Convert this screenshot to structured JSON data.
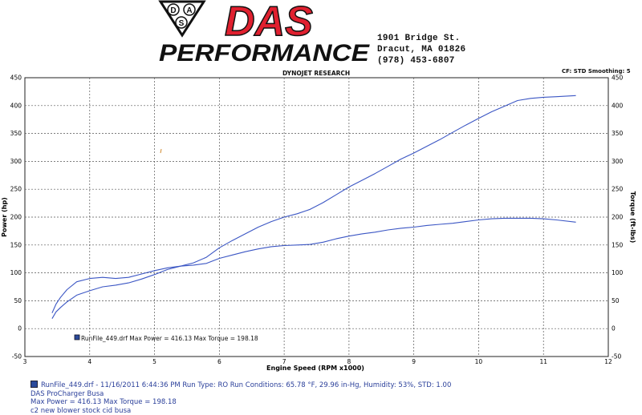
{
  "header": {
    "logo_badge": {
      "letters": [
        "D",
        "A",
        "S"
      ]
    },
    "logo_das": "DAS",
    "logo_performance": "PERFORMANCE",
    "address_lines": [
      "1901 Bridge St.",
      "Dracut, MA  01826",
      "(978) 453-6807"
    ],
    "chart_header": "DYNOJET RESEARCH",
    "cf_smoothing": "CF: STD   Smoothing: 5"
  },
  "colors": {
    "logo_red": "#e0202f",
    "logo_black": "#111111",
    "curve_blue": "#3b56c4",
    "grid": "#555555",
    "text_blue": "#2a3f9a"
  },
  "legend": {
    "text": "RunFile_449.drf Max Power = 416.13     Max Torque = 198.18"
  },
  "footer": {
    "lines": [
      "RunFile_449.drf - 11/16/2011 6:44:36 PM  Run Type: RO  Run Conditions: 65.78 °F, 29.96 in-Hg,  Humidity:  53%, STD: 1.00",
      "DAS ProCharger Busa",
      "Max Power = 416.13  Max Torque = 198.18",
      "c2 new  blower  stock cid busa"
    ]
  },
  "chart_data": {
    "type": "line",
    "title": "DYNOJET RESEARCH",
    "xlabel": "Engine Speed (RPM x1000)",
    "ylabel_left": "Power (hp)",
    "ylabel_right": "Torque (ft-lbs)",
    "xlim": [
      3,
      12
    ],
    "ylim": [
      -50,
      450
    ],
    "x_ticks": [
      "3",
      "4",
      "5",
      "6",
      "7",
      "8",
      "9",
      "10",
      "11",
      "12"
    ],
    "y_ticks": [
      "-50",
      "0",
      "50",
      "100",
      "150",
      "200",
      "250",
      "300",
      "350",
      "400",
      "450"
    ],
    "grid": true,
    "series": [
      {
        "name": "Power",
        "x": [
          3.42,
          3.48,
          3.55,
          3.65,
          3.8,
          4.0,
          4.2,
          4.4,
          4.6,
          4.8,
          5.0,
          5.2,
          5.4,
          5.6,
          5.8,
          6.0,
          6.2,
          6.4,
          6.6,
          6.8,
          7.0,
          7.2,
          7.4,
          7.6,
          7.8,
          8.0,
          8.2,
          8.4,
          8.6,
          8.8,
          9.0,
          9.2,
          9.4,
          9.6,
          9.8,
          10.0,
          10.2,
          10.4,
          10.6,
          10.8,
          11.0,
          11.2,
          11.5
        ],
        "y": [
          18,
          30,
          38,
          48,
          60,
          68,
          75,
          78,
          82,
          89,
          97,
          106,
          112,
          118,
          128,
          145,
          158,
          170,
          182,
          192,
          200,
          206,
          214,
          226,
          240,
          254,
          266,
          278,
          291,
          304,
          315,
          327,
          339,
          352,
          365,
          377,
          389,
          399,
          409,
          413,
          415,
          416,
          418
        ]
      },
      {
        "name": "Torque",
        "x": [
          3.42,
          3.48,
          3.55,
          3.65,
          3.8,
          4.0,
          4.2,
          4.4,
          4.6,
          4.8,
          5.0,
          5.2,
          5.4,
          5.6,
          5.8,
          6.0,
          6.2,
          6.4,
          6.6,
          6.8,
          7.0,
          7.2,
          7.4,
          7.6,
          7.8,
          8.0,
          8.2,
          8.4,
          8.6,
          8.8,
          9.0,
          9.2,
          9.4,
          9.6,
          9.8,
          10.0,
          10.2,
          10.4,
          10.6,
          10.8,
          11.0,
          11.2,
          11.5
        ],
        "y": [
          28,
          44,
          56,
          70,
          84,
          90,
          92,
          90,
          92,
          98,
          104,
          109,
          112,
          114,
          117,
          126,
          132,
          138,
          143,
          147,
          149,
          150,
          151,
          155,
          161,
          166,
          170,
          173,
          177,
          180,
          182,
          185,
          187,
          189,
          192,
          195,
          197,
          198,
          198,
          198,
          197,
          195,
          191
        ]
      }
    ]
  }
}
